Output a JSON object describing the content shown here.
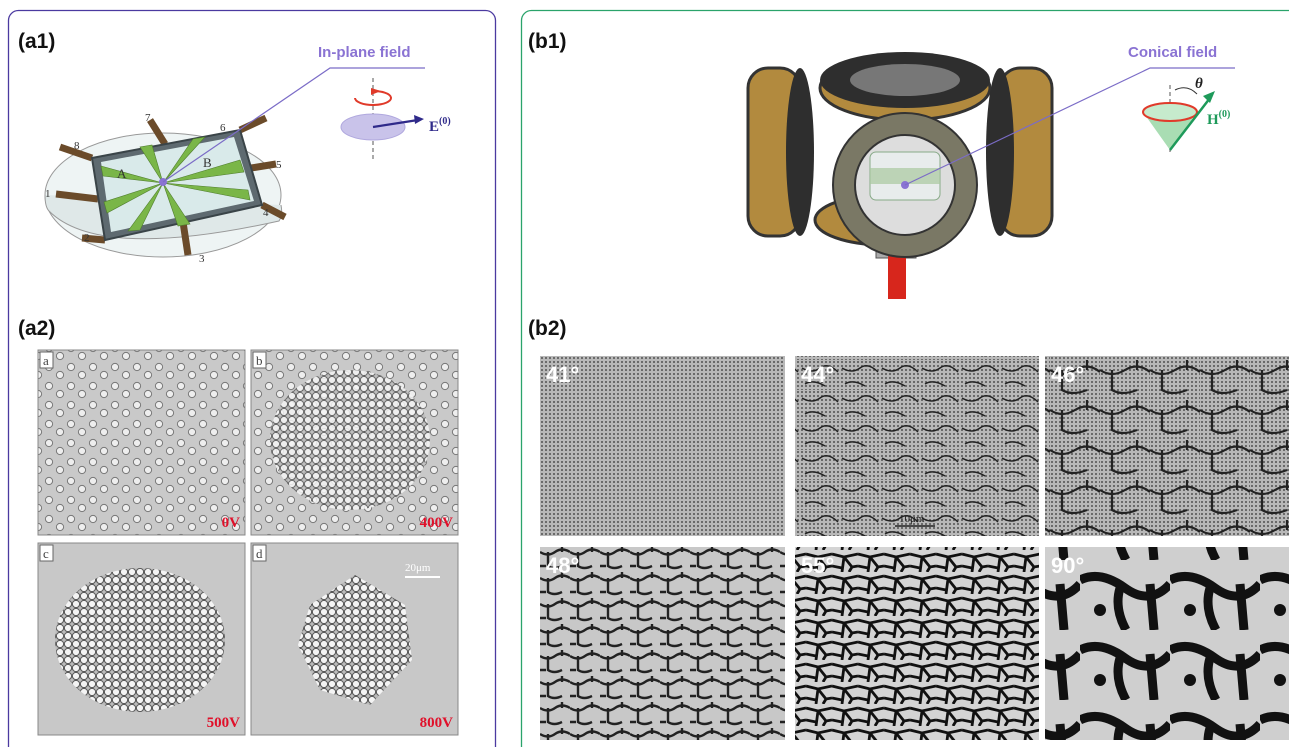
{
  "panels": {
    "a1": {
      "label": "(a1)",
      "field_label": "In-plane field",
      "electrodes": [
        "1",
        "2",
        "3",
        "4",
        "5",
        "6",
        "7",
        "8"
      ],
      "regions": [
        "A",
        "B"
      ],
      "field_symbol": "E",
      "field_superscript": "(0)"
    },
    "a2": {
      "label": "(a2)",
      "images": [
        {
          "tag": "a",
          "voltage": "0V"
        },
        {
          "tag": "b",
          "voltage": "400V"
        },
        {
          "tag": "c",
          "voltage": "500V"
        },
        {
          "tag": "d",
          "voltage": "800V"
        }
      ],
      "scale_bar": "20μm"
    },
    "b1": {
      "label": "(b1)",
      "field_label": "Conical field",
      "field_symbol": "H",
      "field_superscript": "(0)",
      "angle_symbol": "θ"
    },
    "b2": {
      "label": "(b2)",
      "images": [
        "41°",
        "44°",
        "46°",
        "48°",
        "55°",
        "90°"
      ],
      "scale_bar": "10μm"
    }
  }
}
